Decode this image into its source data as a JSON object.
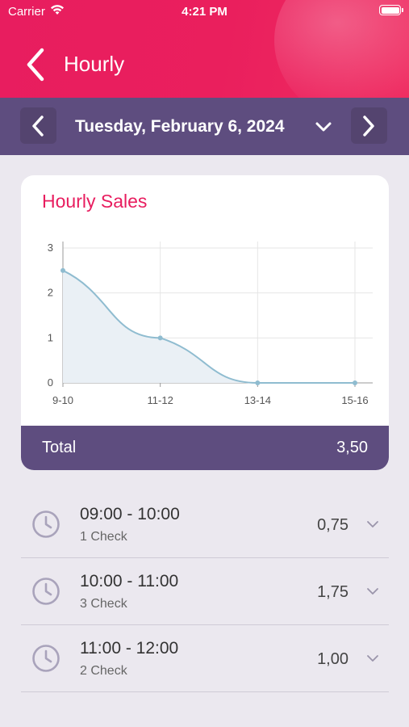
{
  "status_bar": {
    "carrier": "Carrier",
    "time": "4:21 PM",
    "icons": [
      "wifi-icon",
      "battery-icon"
    ]
  },
  "nav": {
    "title": "Hourly",
    "back_icon": "chevron-left-icon"
  },
  "date_bar": {
    "date": "Tuesday, February 6, 2024",
    "prev_icon": "chevron-left-icon",
    "next_icon": "chevron-right-icon",
    "dropdown_icon": "chevron-down-icon"
  },
  "card": {
    "title": "Hourly Sales",
    "total_label": "Total",
    "total_value": "3,50"
  },
  "chart_data": {
    "type": "area",
    "title": "Hourly Sales",
    "categories": [
      "9-10",
      "11-12",
      "13-14",
      "15-16"
    ],
    "values": [
      2.5,
      1.0,
      0.0,
      0.0
    ],
    "yticks": [
      "0",
      "1",
      "2",
      "3"
    ],
    "ylim": [
      0,
      3
    ],
    "grid": true,
    "colors": {
      "line": "#8fbcd0",
      "fill": "#eaf0f5",
      "point": "#8fbcd0"
    }
  },
  "hourly": [
    {
      "range": "09:00 - 10:00",
      "checks": "1 Check",
      "amount": "0,75"
    },
    {
      "range": "10:00 - 11:00",
      "checks": "3 Check",
      "amount": "1,75"
    },
    {
      "range": "11:00 - 12:00",
      "checks": "2 Check",
      "amount": "1,00"
    }
  ],
  "colors": {
    "brand": "#e81d5f",
    "date_bar": "#5e4d7f",
    "background": "#ebe8ef",
    "clock_icon": "#a9a3bb"
  }
}
